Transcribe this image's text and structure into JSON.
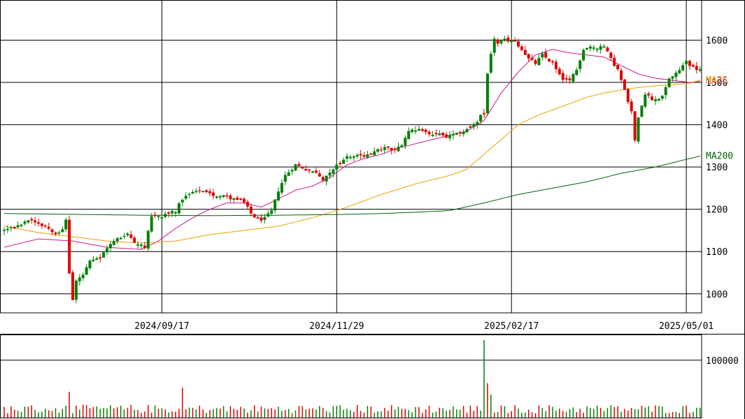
{
  "chart_data": [
    {
      "type": "candlestick",
      "panel": "price",
      "title": "",
      "y_ticks": [
        "1000",
        "1100",
        "1200",
        "1300",
        "1400",
        "1500",
        "1600"
      ],
      "ylim": [
        955,
        1695
      ],
      "x_ticks": [
        {
          "label": "2024/09/17",
          "index": 46
        },
        {
          "label": "2024/11/29",
          "index": 97
        },
        {
          "label": "2025/02/17",
          "index": 148
        },
        {
          "label": "2025/05/01",
          "index": 199
        }
      ],
      "candle_count": 204,
      "grid": true,
      "up_color": "#008000",
      "down_color": "#e00000",
      "anchors_close": [
        [
          0,
          1150
        ],
        [
          4,
          1160
        ],
        [
          8,
          1175
        ],
        [
          12,
          1160
        ],
        [
          15,
          1145
        ],
        [
          17,
          1150
        ],
        [
          18,
          1175
        ],
        [
          19,
          1050
        ],
        [
          20,
          985
        ],
        [
          21,
          1030
        ],
        [
          23,
          1045
        ],
        [
          25,
          1075
        ],
        [
          28,
          1085
        ],
        [
          30,
          1110
        ],
        [
          33,
          1130
        ],
        [
          36,
          1140
        ],
        [
          38,
          1125
        ],
        [
          41,
          1110
        ],
        [
          43,
          1180
        ],
        [
          46,
          1185
        ],
        [
          50,
          1195
        ],
        [
          52,
          1225
        ],
        [
          55,
          1240
        ],
        [
          58,
          1240
        ],
        [
          60,
          1235
        ],
        [
          64,
          1230
        ],
        [
          67,
          1225
        ],
        [
          70,
          1215
        ],
        [
          72,
          1190
        ],
        [
          74,
          1175
        ],
        [
          76,
          1178
        ],
        [
          78,
          1195
        ],
        [
          80,
          1245
        ],
        [
          82,
          1280
        ],
        [
          85,
          1305
        ],
        [
          88,
          1295
        ],
        [
          91,
          1285
        ],
        [
          93,
          1270
        ],
        [
          95,
          1290
        ],
        [
          98,
          1310
        ],
        [
          100,
          1325
        ],
        [
          104,
          1325
        ],
        [
          108,
          1335
        ],
        [
          111,
          1345
        ],
        [
          114,
          1340
        ],
        [
          116,
          1355
        ],
        [
          118,
          1385
        ],
        [
          120,
          1390
        ],
        [
          123,
          1380
        ],
        [
          126,
          1380
        ],
        [
          129,
          1370
        ],
        [
          131,
          1375
        ],
        [
          134,
          1385
        ],
        [
          137,
          1400
        ],
        [
          139,
          1420
        ],
        [
          140,
          1425
        ],
        [
          141,
          1525
        ],
        [
          143,
          1605
        ],
        [
          144,
          1590
        ],
        [
          146,
          1600
        ],
        [
          148,
          1600
        ],
        [
          151,
          1580
        ],
        [
          153,
          1555
        ],
        [
          155,
          1545
        ],
        [
          157,
          1565
        ],
        [
          160,
          1545
        ],
        [
          163,
          1510
        ],
        [
          165,
          1505
        ],
        [
          167,
          1530
        ],
        [
          169,
          1580
        ],
        [
          171,
          1585
        ],
        [
          173,
          1580
        ],
        [
          175,
          1585
        ],
        [
          177,
          1555
        ],
        [
          179,
          1530
        ],
        [
          181,
          1480
        ],
        [
          183,
          1430
        ],
        [
          184,
          1360
        ],
        [
          185,
          1420
        ],
        [
          187,
          1475
        ],
        [
          189,
          1460
        ],
        [
          192,
          1465
        ],
        [
          194,
          1510
        ],
        [
          196,
          1520
        ],
        [
          199,
          1550
        ],
        [
          201,
          1535
        ],
        [
          203,
          1530
        ]
      ],
      "ma_series": [
        {
          "name": "MA25",
          "color": "#d0158f",
          "anchors": [
            [
              0,
              1110
            ],
            [
              10,
              1130
            ],
            [
              20,
              1125
            ],
            [
              30,
              1110
            ],
            [
              40,
              1105
            ],
            [
              45,
              1125
            ],
            [
              50,
              1155
            ],
            [
              55,
              1180
            ],
            [
              60,
              1200
            ],
            [
              65,
              1215
            ],
            [
              70,
              1215
            ],
            [
              75,
              1205
            ],
            [
              80,
              1225
            ],
            [
              85,
              1245
            ],
            [
              90,
              1255
            ],
            [
              95,
              1275
            ],
            [
              100,
              1305
            ],
            [
              105,
              1320
            ],
            [
              110,
              1330
            ],
            [
              115,
              1345
            ],
            [
              120,
              1355
            ],
            [
              125,
              1365
            ],
            [
              130,
              1375
            ],
            [
              135,
              1385
            ],
            [
              140,
              1410
            ],
            [
              145,
              1475
            ],
            [
              150,
              1525
            ],
            [
              155,
              1565
            ],
            [
              160,
              1578
            ],
            [
              165,
              1570
            ],
            [
              170,
              1565
            ],
            [
              175,
              1560
            ],
            [
              180,
              1540
            ],
            [
              185,
              1520
            ],
            [
              190,
              1510
            ],
            [
              195,
              1505
            ],
            [
              200,
              1500
            ],
            [
              203,
              1503
            ]
          ]
        },
        {
          "name": "MA75",
          "color": "#f0a000",
          "anchors": [
            [
              0,
              1160
            ],
            [
              10,
              1145
            ],
            [
              20,
              1135
            ],
            [
              30,
              1125
            ],
            [
              40,
              1120
            ],
            [
              50,
              1125
            ],
            [
              60,
              1140
            ],
            [
              70,
              1150
            ],
            [
              80,
              1160
            ],
            [
              90,
              1180
            ],
            [
              100,
              1205
            ],
            [
              110,
              1235
            ],
            [
              120,
              1260
            ],
            [
              130,
              1280
            ],
            [
              135,
              1295
            ],
            [
              140,
              1330
            ],
            [
              145,
              1365
            ],
            [
              150,
              1400
            ],
            [
              155,
              1420
            ],
            [
              160,
              1435
            ],
            [
              165,
              1450
            ],
            [
              170,
              1465
            ],
            [
              175,
              1475
            ],
            [
              180,
              1482
            ],
            [
              185,
              1488
            ],
            [
              190,
              1492
            ],
            [
              195,
              1495
            ],
            [
              200,
              1498
            ],
            [
              203,
              1505
            ]
          ]
        },
        {
          "name": "MA200",
          "color": "#006400",
          "anchors": [
            [
              0,
              1190
            ],
            [
              20,
              1188
            ],
            [
              40,
              1186
            ],
            [
              60,
              1185
            ],
            [
              80,
              1186
            ],
            [
              100,
              1188
            ],
            [
              110,
              1190
            ],
            [
              120,
              1193
            ],
            [
              130,
              1197
            ],
            [
              140,
              1215
            ],
            [
              150,
              1235
            ],
            [
              160,
              1250
            ],
            [
              170,
              1265
            ],
            [
              180,
              1285
            ],
            [
              190,
              1300
            ],
            [
              203,
              1326
            ]
          ]
        }
      ],
      "ma_labels": [
        {
          "name": "MA25",
          "color": "#d0158f"
        },
        {
          "name": "MA75",
          "color": "#f0a000"
        },
        {
          "name": "MA200",
          "color": "#006400"
        }
      ]
    },
    {
      "type": "bar",
      "panel": "volume",
      "y_ticks": [
        "100000"
      ],
      "ylim": [
        0,
        135000
      ],
      "bar_count": 204,
      "spikes": [
        {
          "index": 19,
          "value": 45000
        },
        {
          "index": 52,
          "value": 52000
        },
        {
          "index": 140,
          "value": 135000
        },
        {
          "index": 141,
          "value": 60000
        },
        {
          "index": 142,
          "value": 40000
        }
      ],
      "typical_value": 15000
    }
  ]
}
